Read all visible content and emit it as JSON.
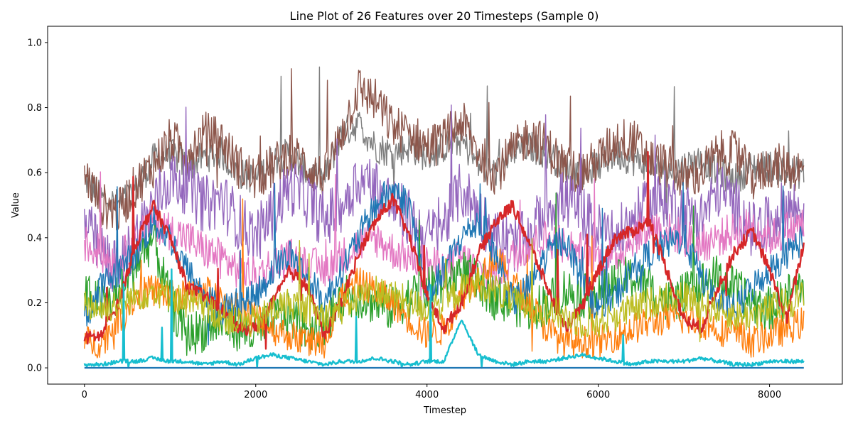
{
  "chart_data": {
    "type": "line",
    "title": "Line Plot of 26 Features over 20 Timesteps (Sample 0)",
    "xlabel": "Timestep",
    "ylabel": "Value",
    "xlim": [
      -430,
      8850
    ],
    "ylim": [
      -0.05,
      1.05
    ],
    "x_ticks": [
      0,
      2000,
      4000,
      6000,
      8000
    ],
    "x_tick_labels": [
      "0",
      "2000",
      "4000",
      "6000",
      "8000"
    ],
    "y_ticks": [
      0.0,
      0.2,
      0.4,
      0.6,
      0.8,
      1.0
    ],
    "y_tick_labels": [
      "0.0",
      "0.2",
      "0.4",
      "0.6",
      "0.8",
      "1.0"
    ],
    "grid": false,
    "legend": "none",
    "x_start": 0,
    "x_step": 200,
    "n_points": 43,
    "series": [
      {
        "color": "#7f7f7f",
        "amplitude": 0.05,
        "values": [
          0.58,
          0.52,
          0.5,
          0.55,
          0.64,
          0.66,
          0.62,
          0.65,
          0.66,
          0.6,
          0.58,
          0.64,
          0.66,
          0.6,
          0.58,
          0.72,
          0.75,
          0.68,
          0.66,
          0.68,
          0.65,
          0.68,
          0.7,
          0.62,
          0.6,
          0.66,
          0.68,
          0.66,
          0.62,
          0.6,
          0.62,
          0.66,
          0.64,
          0.62,
          0.6,
          0.62,
          0.64,
          0.6,
          0.58,
          0.62,
          0.62,
          0.6,
          0.6
        ]
      },
      {
        "color": "#8c564b",
        "amplitude": 0.07,
        "values": [
          0.6,
          0.5,
          0.48,
          0.56,
          0.62,
          0.7,
          0.66,
          0.72,
          0.7,
          0.62,
          0.58,
          0.62,
          0.66,
          0.62,
          0.58,
          0.72,
          0.86,
          0.82,
          0.74,
          0.72,
          0.68,
          0.7,
          0.76,
          0.66,
          0.6,
          0.66,
          0.72,
          0.68,
          0.62,
          0.6,
          0.64,
          0.7,
          0.7,
          0.64,
          0.62,
          0.58,
          0.6,
          0.66,
          0.66,
          0.58,
          0.62,
          0.62,
          0.6
        ]
      },
      {
        "color": "#9467bd",
        "amplitude": 0.09,
        "values": [
          0.45,
          0.35,
          0.3,
          0.4,
          0.5,
          0.58,
          0.56,
          0.5,
          0.52,
          0.45,
          0.4,
          0.48,
          0.56,
          0.52,
          0.45,
          0.5,
          0.58,
          0.56,
          0.5,
          0.46,
          0.4,
          0.44,
          0.55,
          0.48,
          0.4,
          0.38,
          0.4,
          0.5,
          0.52,
          0.48,
          0.42,
          0.4,
          0.45,
          0.5,
          0.52,
          0.48,
          0.46,
          0.55,
          0.5,
          0.42,
          0.44,
          0.5,
          0.48
        ]
      },
      {
        "color": "#e377c2",
        "amplitude": 0.06,
        "values": [
          0.38,
          0.35,
          0.32,
          0.4,
          0.45,
          0.42,
          0.4,
          0.36,
          0.34,
          0.3,
          0.28,
          0.32,
          0.34,
          0.32,
          0.3,
          0.34,
          0.38,
          0.4,
          0.36,
          0.34,
          0.32,
          0.3,
          0.34,
          0.3,
          0.28,
          0.34,
          0.38,
          0.4,
          0.38,
          0.36,
          0.34,
          0.34,
          0.4,
          0.44,
          0.42,
          0.4,
          0.38,
          0.4,
          0.42,
          0.44,
          0.4,
          0.42,
          0.44
        ]
      },
      {
        "color": "#2ca02c",
        "amplitude": 0.07,
        "values": [
          0.22,
          0.2,
          0.22,
          0.32,
          0.4,
          0.2,
          0.1,
          0.12,
          0.14,
          0.12,
          0.1,
          0.15,
          0.16,
          0.12,
          0.14,
          0.2,
          0.22,
          0.2,
          0.18,
          0.22,
          0.24,
          0.26,
          0.3,
          0.26,
          0.22,
          0.2,
          0.18,
          0.2,
          0.24,
          0.22,
          0.22,
          0.26,
          0.28,
          0.24,
          0.2,
          0.22,
          0.26,
          0.28,
          0.24,
          0.2,
          0.18,
          0.22,
          0.26
        ]
      },
      {
        "color": "#ff7f0e",
        "amplitude": 0.05,
        "values": [
          0.08,
          0.08,
          0.15,
          0.22,
          0.24,
          0.22,
          0.22,
          0.25,
          0.2,
          0.18,
          0.16,
          0.12,
          0.1,
          0.08,
          0.08,
          0.22,
          0.26,
          0.24,
          0.2,
          0.15,
          0.1,
          0.12,
          0.22,
          0.28,
          0.34,
          0.26,
          0.2,
          0.12,
          0.08,
          0.08,
          0.08,
          0.1,
          0.12,
          0.14,
          0.15,
          0.15,
          0.14,
          0.12,
          0.1,
          0.08,
          0.1,
          0.12,
          0.14
        ]
      },
      {
        "color": "#1f77b4",
        "amplitude": 0.05,
        "values": [
          0.15,
          0.25,
          0.3,
          0.35,
          0.45,
          0.4,
          0.3,
          0.22,
          0.18,
          0.2,
          0.22,
          0.3,
          0.35,
          0.28,
          0.2,
          0.3,
          0.4,
          0.5,
          0.55,
          0.5,
          0.22,
          0.3,
          0.4,
          0.45,
          0.35,
          0.2,
          0.25,
          0.35,
          0.4,
          0.28,
          0.18,
          0.22,
          0.3,
          0.35,
          0.38,
          0.4,
          0.28,
          0.2,
          0.18,
          0.25,
          0.3,
          0.35,
          0.4
        ]
      },
      {
        "color": "#d62728",
        "amplitude": 0.02,
        "values": [
          0.09,
          0.1,
          0.2,
          0.38,
          0.5,
          0.4,
          0.25,
          0.22,
          0.18,
          0.12,
          0.12,
          0.2,
          0.3,
          0.25,
          0.1,
          0.2,
          0.35,
          0.45,
          0.52,
          0.4,
          0.22,
          0.12,
          0.2,
          0.35,
          0.45,
          0.5,
          0.38,
          0.25,
          0.12,
          0.18,
          0.3,
          0.4,
          0.42,
          0.45,
          0.3,
          0.15,
          0.12,
          0.25,
          0.36,
          0.42,
          0.3,
          0.15,
          0.38
        ]
      },
      {
        "color": "#bcbd22",
        "amplitude": 0.05,
        "values": [
          0.2,
          0.18,
          0.2,
          0.22,
          0.24,
          0.22,
          0.2,
          0.18,
          0.16,
          0.14,
          0.14,
          0.18,
          0.2,
          0.18,
          0.16,
          0.18,
          0.22,
          0.24,
          0.22,
          0.2,
          0.18,
          0.2,
          0.24,
          0.26,
          0.24,
          0.2,
          0.18,
          0.18,
          0.16,
          0.14,
          0.14,
          0.16,
          0.18,
          0.2,
          0.22,
          0.22,
          0.2,
          0.18,
          0.16,
          0.16,
          0.18,
          0.2,
          0.22
        ]
      },
      {
        "color": "#17becf",
        "amplitude": 0.006,
        "values": [
          0.01,
          0.01,
          0.02,
          0.02,
          0.03,
          0.02,
          0.02,
          0.01,
          0.02,
          0.01,
          0.03,
          0.04,
          0.03,
          0.02,
          0.01,
          0.02,
          0.02,
          0.03,
          0.02,
          0.01,
          0.02,
          0.02,
          0.15,
          0.04,
          0.02,
          0.01,
          0.02,
          0.02,
          0.03,
          0.04,
          0.03,
          0.02,
          0.01,
          0.02,
          0.02,
          0.02,
          0.03,
          0.02,
          0.01,
          0.01,
          0.02,
          0.02,
          0.02
        ]
      },
      {
        "color": "#1f77b4",
        "amplitude": 0.0,
        "values": [
          0.0,
          0.0,
          0.0,
          0.0,
          0.0,
          0.0,
          0.0,
          0.0,
          0.0,
          0.0,
          0.0,
          0.0,
          0.0,
          0.0,
          0.0,
          0.0,
          0.0,
          0.0,
          0.0,
          0.0,
          0.0,
          0.0,
          0.0,
          0.0,
          0.0,
          0.0,
          0.0,
          0.0,
          0.0,
          0.0,
          0.0,
          0.0,
          0.0,
          0.0,
          0.0,
          0.0,
          0.0,
          0.0,
          0.0,
          0.0,
          0.0,
          0.0,
          0.0
        ]
      }
    ]
  }
}
